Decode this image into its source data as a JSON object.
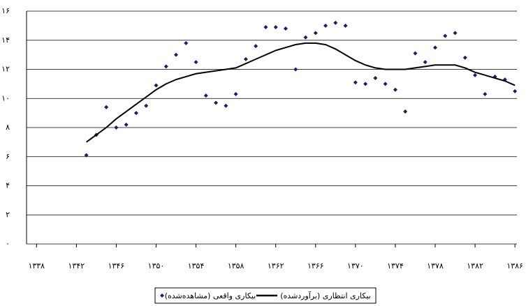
{
  "chart_data": {
    "type": "scatter",
    "x": [
      1343,
      1344,
      1345,
      1346,
      1347,
      1348,
      1349,
      1350,
      1351,
      1352,
      1353,
      1354,
      1355,
      1356,
      1357,
      1358,
      1359,
      1360,
      1361,
      1362,
      1363,
      1364,
      1365,
      1366,
      1367,
      1368,
      1369,
      1370,
      1371,
      1372,
      1373,
      1374,
      1375,
      1376,
      1377,
      1378,
      1379,
      1380,
      1381,
      1382,
      1383,
      1384,
      1385,
      1386
    ],
    "series": [
      {
        "name": "بیکاری واقعی (مشاهده‌شده)",
        "type": "scatter",
        "color": "#1c1c6b",
        "values": [
          6.1,
          7.5,
          9.4,
          8.0,
          8.2,
          9.0,
          9.5,
          10.9,
          12.2,
          13.0,
          13.8,
          12.5,
          10.2,
          9.7,
          9.5,
          10.3,
          12.7,
          13.6,
          14.9,
          14.9,
          14.8,
          12.0,
          14.2,
          14.5,
          15.0,
          15.2,
          15.0,
          11.1,
          11.0,
          11.4,
          11.0,
          10.6,
          9.1,
          13.1,
          12.5,
          13.5,
          14.3,
          14.5,
          12.8,
          11.6,
          10.3,
          11.5,
          11.3,
          10.5
        ]
      },
      {
        "name": "بیکاری انتظاری (برآوردشده)",
        "type": "line",
        "color": "#000000",
        "values": [
          7.0,
          7.5,
          8.0,
          8.6,
          9.1,
          9.6,
          10.1,
          10.6,
          11.0,
          11.3,
          11.5,
          11.7,
          11.8,
          11.9,
          12.0,
          12.1,
          12.4,
          12.7,
          13.0,
          13.3,
          13.5,
          13.7,
          13.8,
          13.8,
          13.7,
          13.4,
          13.0,
          12.6,
          12.3,
          12.1,
          12.0,
          12.0,
          12.0,
          12.1,
          12.2,
          12.3,
          12.3,
          12.3,
          12.1,
          11.8,
          11.6,
          11.4,
          11.2,
          10.9
        ]
      }
    ],
    "xlim": [
      1337,
      1386.2
    ],
    "xticks": [
      {
        "value": 1338,
        "label": "۱۳۳۸"
      },
      {
        "value": 1342,
        "label": "۱۳۴۲"
      },
      {
        "value": 1346,
        "label": "۱۳۴۶"
      },
      {
        "value": 1350,
        "label": "۱۳۵۰"
      },
      {
        "value": 1354,
        "label": "۱۳۵۴"
      },
      {
        "value": 1358,
        "label": "۱۳۵۸"
      },
      {
        "value": 1362,
        "label": "۱۳۶۲"
      },
      {
        "value": 1366,
        "label": "۱۳۶۶"
      },
      {
        "value": 1370,
        "label": "۱۳۷۰"
      },
      {
        "value": 1374,
        "label": "۱۳۷۴"
      },
      {
        "value": 1378,
        "label": "۱۳۷۸"
      },
      {
        "value": 1382,
        "label": "۱۳۸۲"
      },
      {
        "value": 1386,
        "label": "۱۳۸۶"
      }
    ],
    "ylim": [
      0,
      16
    ],
    "yticks": [
      {
        "value": 0,
        "label": "۰"
      },
      {
        "value": 2,
        "label": "۲"
      },
      {
        "value": 4,
        "label": "۴"
      },
      {
        "value": 6,
        "label": "۶"
      },
      {
        "value": 8,
        "label": "۸"
      },
      {
        "value": 10,
        "label": "۱۰"
      },
      {
        "value": 12,
        "label": "۱۲"
      },
      {
        "value": 14,
        "label": "۱۴"
      },
      {
        "value": 16,
        "label": "۱۶"
      }
    ],
    "grid": true
  }
}
